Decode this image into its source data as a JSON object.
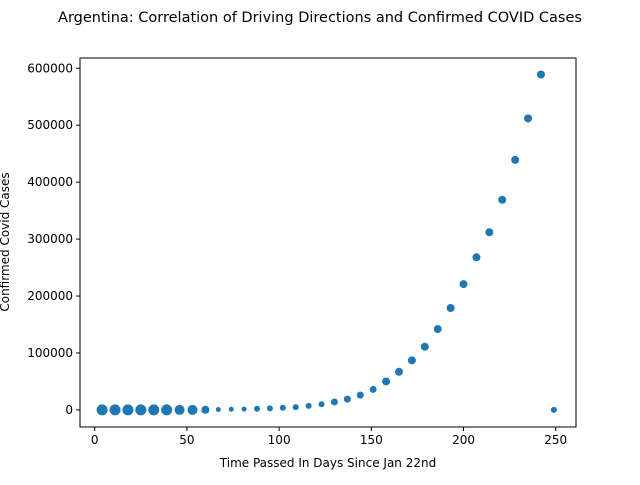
{
  "chart_data": {
    "type": "scatter",
    "title": "Argentina: Correlation of Driving Directions and Confirmed COVID Cases",
    "xlabel": "Time Passed In Days Since Jan 22nd",
    "ylabel": "Confirmed Covid Cases",
    "xlim": [
      -8,
      261
    ],
    "ylim": [
      -30000,
      618000
    ],
    "xticks": [
      0,
      50,
      100,
      150,
      200,
      250
    ],
    "yticks": [
      0,
      100000,
      200000,
      300000,
      400000,
      500000,
      600000
    ],
    "grid": false,
    "legend": "none",
    "color": "#1f77b4",
    "points": [
      {
        "x": 4,
        "y": 0,
        "size": 11
      },
      {
        "x": 11,
        "y": 0,
        "size": 11
      },
      {
        "x": 18,
        "y": 0,
        "size": 11
      },
      {
        "x": 25,
        "y": 0,
        "size": 11
      },
      {
        "x": 32,
        "y": 0,
        "size": 11
      },
      {
        "x": 39,
        "y": 0,
        "size": 11
      },
      {
        "x": 46,
        "y": 0,
        "size": 10
      },
      {
        "x": 53,
        "y": 0,
        "size": 10
      },
      {
        "x": 60,
        "y": 300,
        "size": 8
      },
      {
        "x": 67,
        "y": 800,
        "size": 5
      },
      {
        "x": 74,
        "y": 1200,
        "size": 5
      },
      {
        "x": 81,
        "y": 1500,
        "size": 5
      },
      {
        "x": 88,
        "y": 2000,
        "size": 6
      },
      {
        "x": 95,
        "y": 2800,
        "size": 6
      },
      {
        "x": 102,
        "y": 3800,
        "size": 6
      },
      {
        "x": 109,
        "y": 5000,
        "size": 6
      },
      {
        "x": 116,
        "y": 7000,
        "size": 6
      },
      {
        "x": 123,
        "y": 10000,
        "size": 6
      },
      {
        "x": 130,
        "y": 14000,
        "size": 7
      },
      {
        "x": 137,
        "y": 19000,
        "size": 7
      },
      {
        "x": 144,
        "y": 26000,
        "size": 7
      },
      {
        "x": 151,
        "y": 36000,
        "size": 7
      },
      {
        "x": 158,
        "y": 50000,
        "size": 8
      },
      {
        "x": 165,
        "y": 67000,
        "size": 8
      },
      {
        "x": 172,
        "y": 87000,
        "size": 8
      },
      {
        "x": 179,
        "y": 111000,
        "size": 8
      },
      {
        "x": 186,
        "y": 142000,
        "size": 8
      },
      {
        "x": 193,
        "y": 179000,
        "size": 8
      },
      {
        "x": 200,
        "y": 221000,
        "size": 8
      },
      {
        "x": 207,
        "y": 268000,
        "size": 8
      },
      {
        "x": 214,
        "y": 312000,
        "size": 8
      },
      {
        "x": 221,
        "y": 369000,
        "size": 8
      },
      {
        "x": 228,
        "y": 439000,
        "size": 8
      },
      {
        "x": 235,
        "y": 512000,
        "size": 8
      },
      {
        "x": 242,
        "y": 589000,
        "size": 8
      },
      {
        "x": 249,
        "y": 0,
        "size": 6
      }
    ]
  }
}
